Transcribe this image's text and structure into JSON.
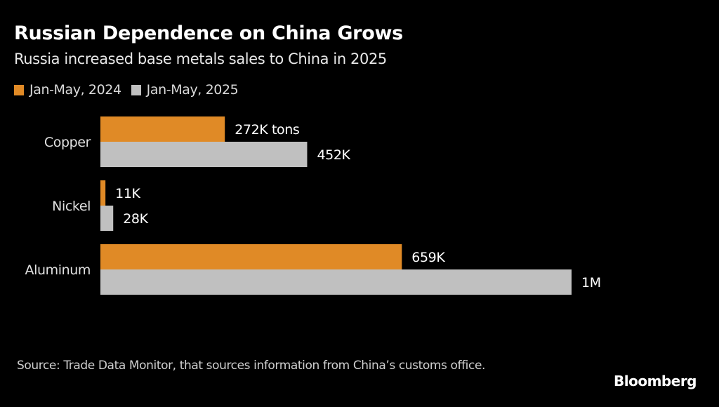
{
  "header": {
    "title": "Russian Dependence on China Grows",
    "subtitle": "Russia increased base metals sales to China in 2025"
  },
  "footer": {
    "source": "Source: Trade Data Monitor, that sources information from China’s customs office.",
    "brand": "Bloomberg"
  },
  "chart_data": {
    "type": "bar",
    "orientation": "horizontal",
    "title": "Russian Dependence on China Grows",
    "subtitle": "Russia increased base metals sales to China in 2025",
    "xlabel": "",
    "ylabel": "",
    "units": "thousand tons",
    "categories": [
      "Copper",
      "Nickel",
      "Aluminum"
    ],
    "series": [
      {
        "name": "Jan-May, 2024",
        "color": "#e08a26",
        "values": [
          272,
          11,
          659
        ],
        "labels": [
          "272K tons",
          "11K",
          "659K"
        ]
      },
      {
        "name": "Jan-May, 2025",
        "color": "#c0c0c0",
        "values": [
          452,
          28,
          1030
        ],
        "labels": [
          "452K",
          "28K",
          "1M"
        ]
      }
    ],
    "xlim": [
      0,
      1030
    ],
    "grid": false,
    "legend": "top-left"
  }
}
